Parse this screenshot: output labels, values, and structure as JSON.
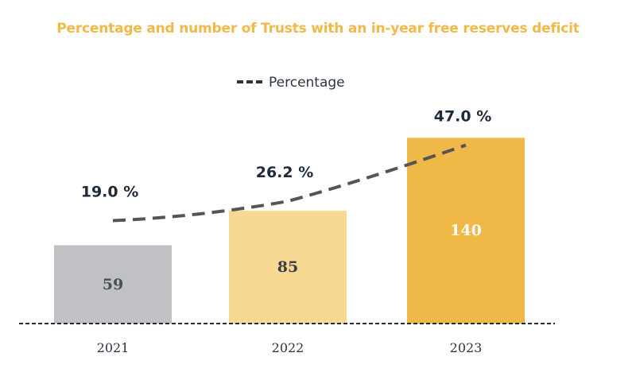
{
  "chart_data": {
    "type": "bar",
    "title": "Percentage and number of Trusts with an in-year free reserves deficit",
    "categories": [
      "2021",
      "2022",
      "2023"
    ],
    "series": [
      {
        "name": "Number of Trusts",
        "values": [
          59,
          85,
          140
        ],
        "value_labels": [
          "59",
          "85",
          "140"
        ],
        "colors": [
          "#bfc1c4",
          "#f7d993",
          "#f0b846"
        ],
        "label_colors": [
          "#4a4f57",
          "#3a3f47",
          "#ffffff"
        ]
      },
      {
        "name": "Percentage",
        "type": "line",
        "style": "dashed",
        "color": "#555555",
        "values": [
          19.0,
          26.2,
          47.0
        ],
        "value_labels": [
          "19.0 %",
          "26.2 %",
          "47.0 %"
        ]
      }
    ],
    "legend": {
      "position": "top-center",
      "entries": [
        "Percentage"
      ]
    },
    "ylim": [
      0,
      160
    ],
    "xlabel": "",
    "ylabel": "",
    "grid": false
  }
}
